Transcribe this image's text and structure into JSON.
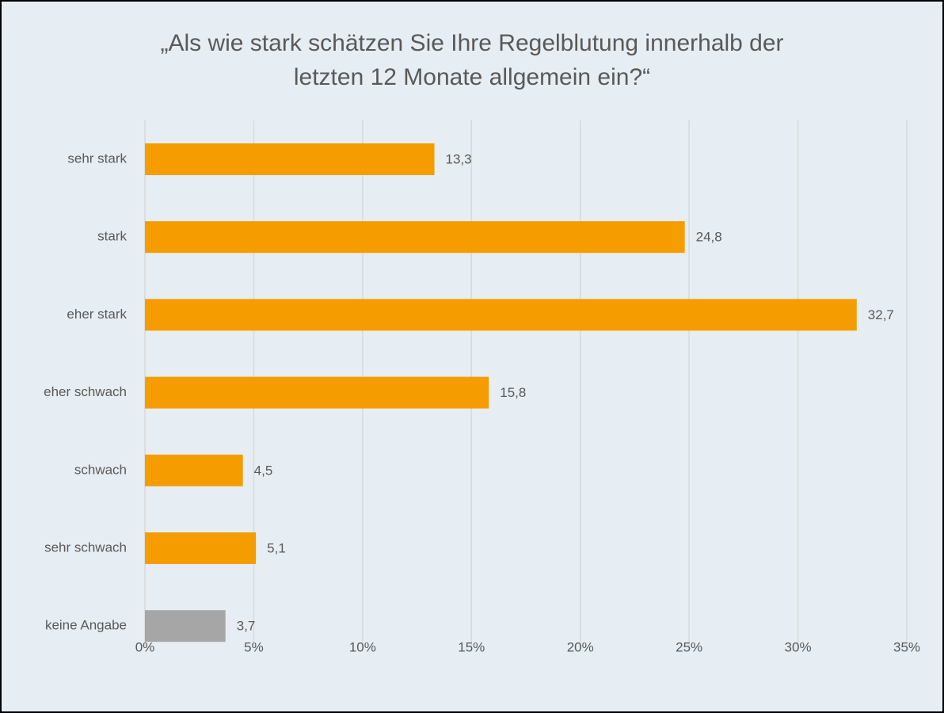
{
  "chart_data": {
    "type": "hbar",
    "title": [
      "„Als wie stark schätzen Sie Ihre Regelblutung innerhalb der",
      "letzten 12 Monate allgemein ein?“"
    ],
    "categories": [
      "sehr stark",
      "stark",
      "eher stark",
      "eher schwach",
      "schwach",
      "sehr schwach",
      "keine Angabe"
    ],
    "values": [
      13.3,
      24.8,
      32.7,
      15.8,
      4.5,
      5.1,
      3.7
    ],
    "value_labels": [
      "13,3",
      "24,8",
      "32,7",
      "15,8",
      "4,5",
      "5,1",
      "3,7"
    ],
    "colors": [
      "#f59c00",
      "#f59c00",
      "#f59c00",
      "#f59c00",
      "#f59c00",
      "#f59c00",
      "#a6a6a6"
    ],
    "xlim": [
      0,
      35
    ],
    "xticks": [
      {
        "value": 0,
        "label": "0%"
      },
      {
        "value": 5,
        "label": "5%"
      },
      {
        "value": 10,
        "label": "10%"
      },
      {
        "value": 15,
        "label": "15%"
      },
      {
        "value": 20,
        "label": "20%"
      },
      {
        "value": 25,
        "label": "25%"
      },
      {
        "value": 30,
        "label": "30%"
      },
      {
        "value": 35,
        "label": "35%"
      }
    ],
    "grid": true
  }
}
